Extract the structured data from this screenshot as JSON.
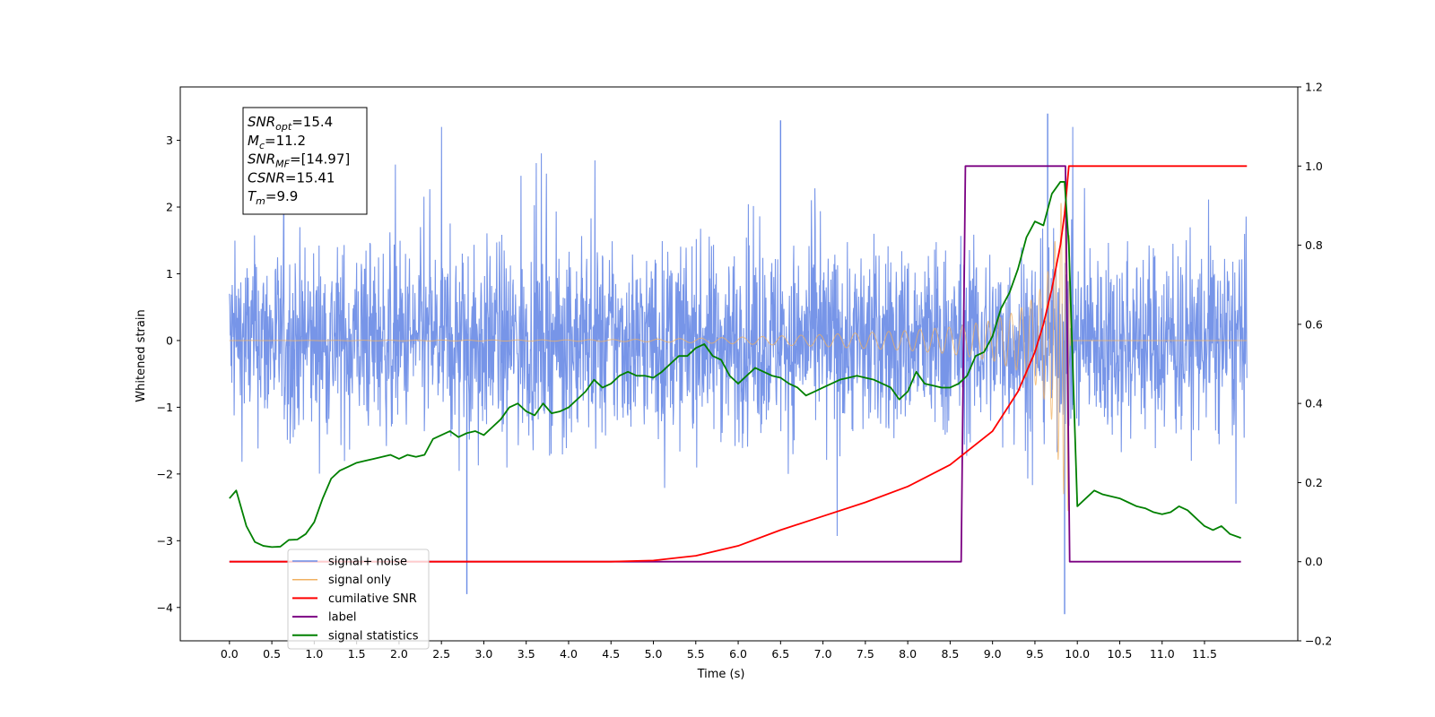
{
  "chart_data": {
    "type": "line",
    "xlabel": "Time (s)",
    "ylabel": "Whitened strain",
    "xlim": [
      -0.58,
      12.6
    ],
    "ylim": [
      -4.5,
      3.8
    ],
    "y2lim": [
      -0.2,
      1.2
    ],
    "x_ticks": [
      0.0,
      0.5,
      1.0,
      1.5,
      2.0,
      2.5,
      3.0,
      3.5,
      4.0,
      4.5,
      5.0,
      5.5,
      6.0,
      6.5,
      7.0,
      7.5,
      8.0,
      8.5,
      9.0,
      9.5,
      10.0,
      10.5,
      11.0,
      11.5
    ],
    "y_ticks": [
      3,
      2,
      1,
      0,
      -1,
      -2,
      -3,
      -4
    ],
    "y2_ticks": [
      1.2,
      1.0,
      0.8,
      0.6,
      0.4,
      0.2,
      0.0,
      -0.2
    ],
    "grid": false,
    "legend_position": "bottom-left",
    "legend": [
      "signal+ noise",
      "signal only",
      "cumilative SNR",
      "label",
      "signal statistics"
    ],
    "annotation": {
      "lines": [
        {
          "base": "SNR",
          "sub": "opt",
          "rest": "=15.4"
        },
        {
          "base": "M",
          "sub": "c",
          "rest": "=11.2"
        },
        {
          "base": "SNR",
          "sub": "MF",
          "rest": "=[14.97]"
        },
        {
          "base": "CSNR",
          "sub": "",
          "rest": "=15.41"
        },
        {
          "base": "T",
          "sub": "m",
          "rest": "=9.9"
        }
      ]
    },
    "series": [
      {
        "name": "signal+ noise",
        "axis": "left",
        "color": "#6b8ce6",
        "description": "whitened noise with chirp signal, amplitude about ±1.8 with spikes to ±3",
        "x_range": [
          0.0,
          12.0
        ],
        "peak_spikes": [
          {
            "x": 2.8,
            "y": -3.8
          },
          {
            "x": 9.65,
            "y": 3.4
          },
          {
            "x": 9.85,
            "y": -4.1
          },
          {
            "x": 6.5,
            "y": 3.3
          }
        ]
      },
      {
        "name": "signal only",
        "axis": "left",
        "color": "#f0b060",
        "envelope": {
          "x": [
            0.0,
            4.0,
            5.0,
            6.0,
            7.0,
            7.5,
            8.0,
            8.5,
            9.0,
            9.3,
            9.5,
            9.6,
            9.7,
            9.75,
            9.8,
            9.85,
            9.9,
            9.92,
            12.0
          ],
          "y": [
            0.0,
            0.01,
            0.02,
            0.05,
            0.09,
            0.12,
            0.15,
            0.2,
            0.3,
            0.45,
            0.65,
            0.85,
            1.2,
            1.6,
            2.0,
            2.4,
            2.6,
            0.0,
            0.0
          ]
        }
      },
      {
        "name": "cumilative SNR",
        "axis": "right",
        "color": "#ff0000",
        "x": [
          0.0,
          4.5,
          5.0,
          5.5,
          6.0,
          6.5,
          7.0,
          7.5,
          8.0,
          8.5,
          9.0,
          9.3,
          9.5,
          9.6,
          9.7,
          9.8,
          9.85,
          9.9,
          12.0
        ],
        "y": [
          0.0,
          0.0,
          0.003,
          0.015,
          0.04,
          0.08,
          0.115,
          0.15,
          0.19,
          0.245,
          0.33,
          0.43,
          0.53,
          0.6,
          0.69,
          0.8,
          0.88,
          1.0,
          1.0
        ]
      },
      {
        "name": "label",
        "axis": "right",
        "color": "#7b0082",
        "x": [
          0.0,
          8.63,
          8.68,
          9.86,
          9.91,
          11.93
        ],
        "y": [
          0.0,
          0.0,
          1.0,
          1.0,
          0.0,
          0.0
        ]
      },
      {
        "name": "signal statistics",
        "axis": "right",
        "color": "#008000",
        "x": [
          0.0,
          0.08,
          0.2,
          0.3,
          0.4,
          0.5,
          0.6,
          0.7,
          0.8,
          0.9,
          1.0,
          1.1,
          1.2,
          1.3,
          1.4,
          1.5,
          1.6,
          1.7,
          1.8,
          1.9,
          2.0,
          2.1,
          2.2,
          2.3,
          2.4,
          2.5,
          2.6,
          2.7,
          2.8,
          2.9,
          3.0,
          3.1,
          3.2,
          3.3,
          3.4,
          3.5,
          3.6,
          3.7,
          3.8,
          3.9,
          4.0,
          4.1,
          4.2,
          4.3,
          4.4,
          4.5,
          4.6,
          4.7,
          4.8,
          4.9,
          5.0,
          5.1,
          5.2,
          5.3,
          5.4,
          5.5,
          5.6,
          5.7,
          5.8,
          5.9,
          6.0,
          6.1,
          6.2,
          6.3,
          6.4,
          6.5,
          6.6,
          6.7,
          6.8,
          6.9,
          7.0,
          7.1,
          7.2,
          7.3,
          7.4,
          7.5,
          7.6,
          7.7,
          7.8,
          7.9,
          8.0,
          8.1,
          8.2,
          8.3,
          8.4,
          8.5,
          8.6,
          8.7,
          8.8,
          8.9,
          9.0,
          9.1,
          9.2,
          9.3,
          9.4,
          9.5,
          9.6,
          9.7,
          9.8,
          9.85,
          9.9,
          10.0,
          10.1,
          10.2,
          10.3,
          10.4,
          10.5,
          10.6,
          10.7,
          10.8,
          10.9,
          11.0,
          11.1,
          11.2,
          11.3,
          11.4,
          11.5,
          11.6,
          11.7,
          11.8,
          11.93
        ],
        "y": [
          0.16,
          0.18,
          0.09,
          0.05,
          0.04,
          0.037,
          0.038,
          0.055,
          0.056,
          0.07,
          0.1,
          0.16,
          0.21,
          0.23,
          0.24,
          0.25,
          0.255,
          0.26,
          0.265,
          0.27,
          0.26,
          0.27,
          0.265,
          0.27,
          0.31,
          0.32,
          0.33,
          0.315,
          0.325,
          0.33,
          0.32,
          0.34,
          0.36,
          0.39,
          0.4,
          0.38,
          0.37,
          0.4,
          0.375,
          0.38,
          0.39,
          0.41,
          0.43,
          0.46,
          0.44,
          0.45,
          0.47,
          0.48,
          0.47,
          0.47,
          0.465,
          0.48,
          0.5,
          0.52,
          0.52,
          0.54,
          0.55,
          0.52,
          0.51,
          0.47,
          0.45,
          0.47,
          0.49,
          0.48,
          0.47,
          0.465,
          0.45,
          0.44,
          0.42,
          0.43,
          0.44,
          0.45,
          0.46,
          0.465,
          0.47,
          0.465,
          0.46,
          0.45,
          0.44,
          0.41,
          0.43,
          0.48,
          0.45,
          0.445,
          0.44,
          0.44,
          0.45,
          0.47,
          0.52,
          0.53,
          0.57,
          0.64,
          0.68,
          0.74,
          0.82,
          0.86,
          0.85,
          0.93,
          0.96,
          0.96,
          0.8,
          0.14,
          0.16,
          0.18,
          0.17,
          0.165,
          0.16,
          0.15,
          0.14,
          0.135,
          0.125,
          0.12,
          0.125,
          0.14,
          0.13,
          0.11,
          0.09,
          0.08,
          0.09,
          0.07,
          0.06
        ]
      }
    ]
  }
}
